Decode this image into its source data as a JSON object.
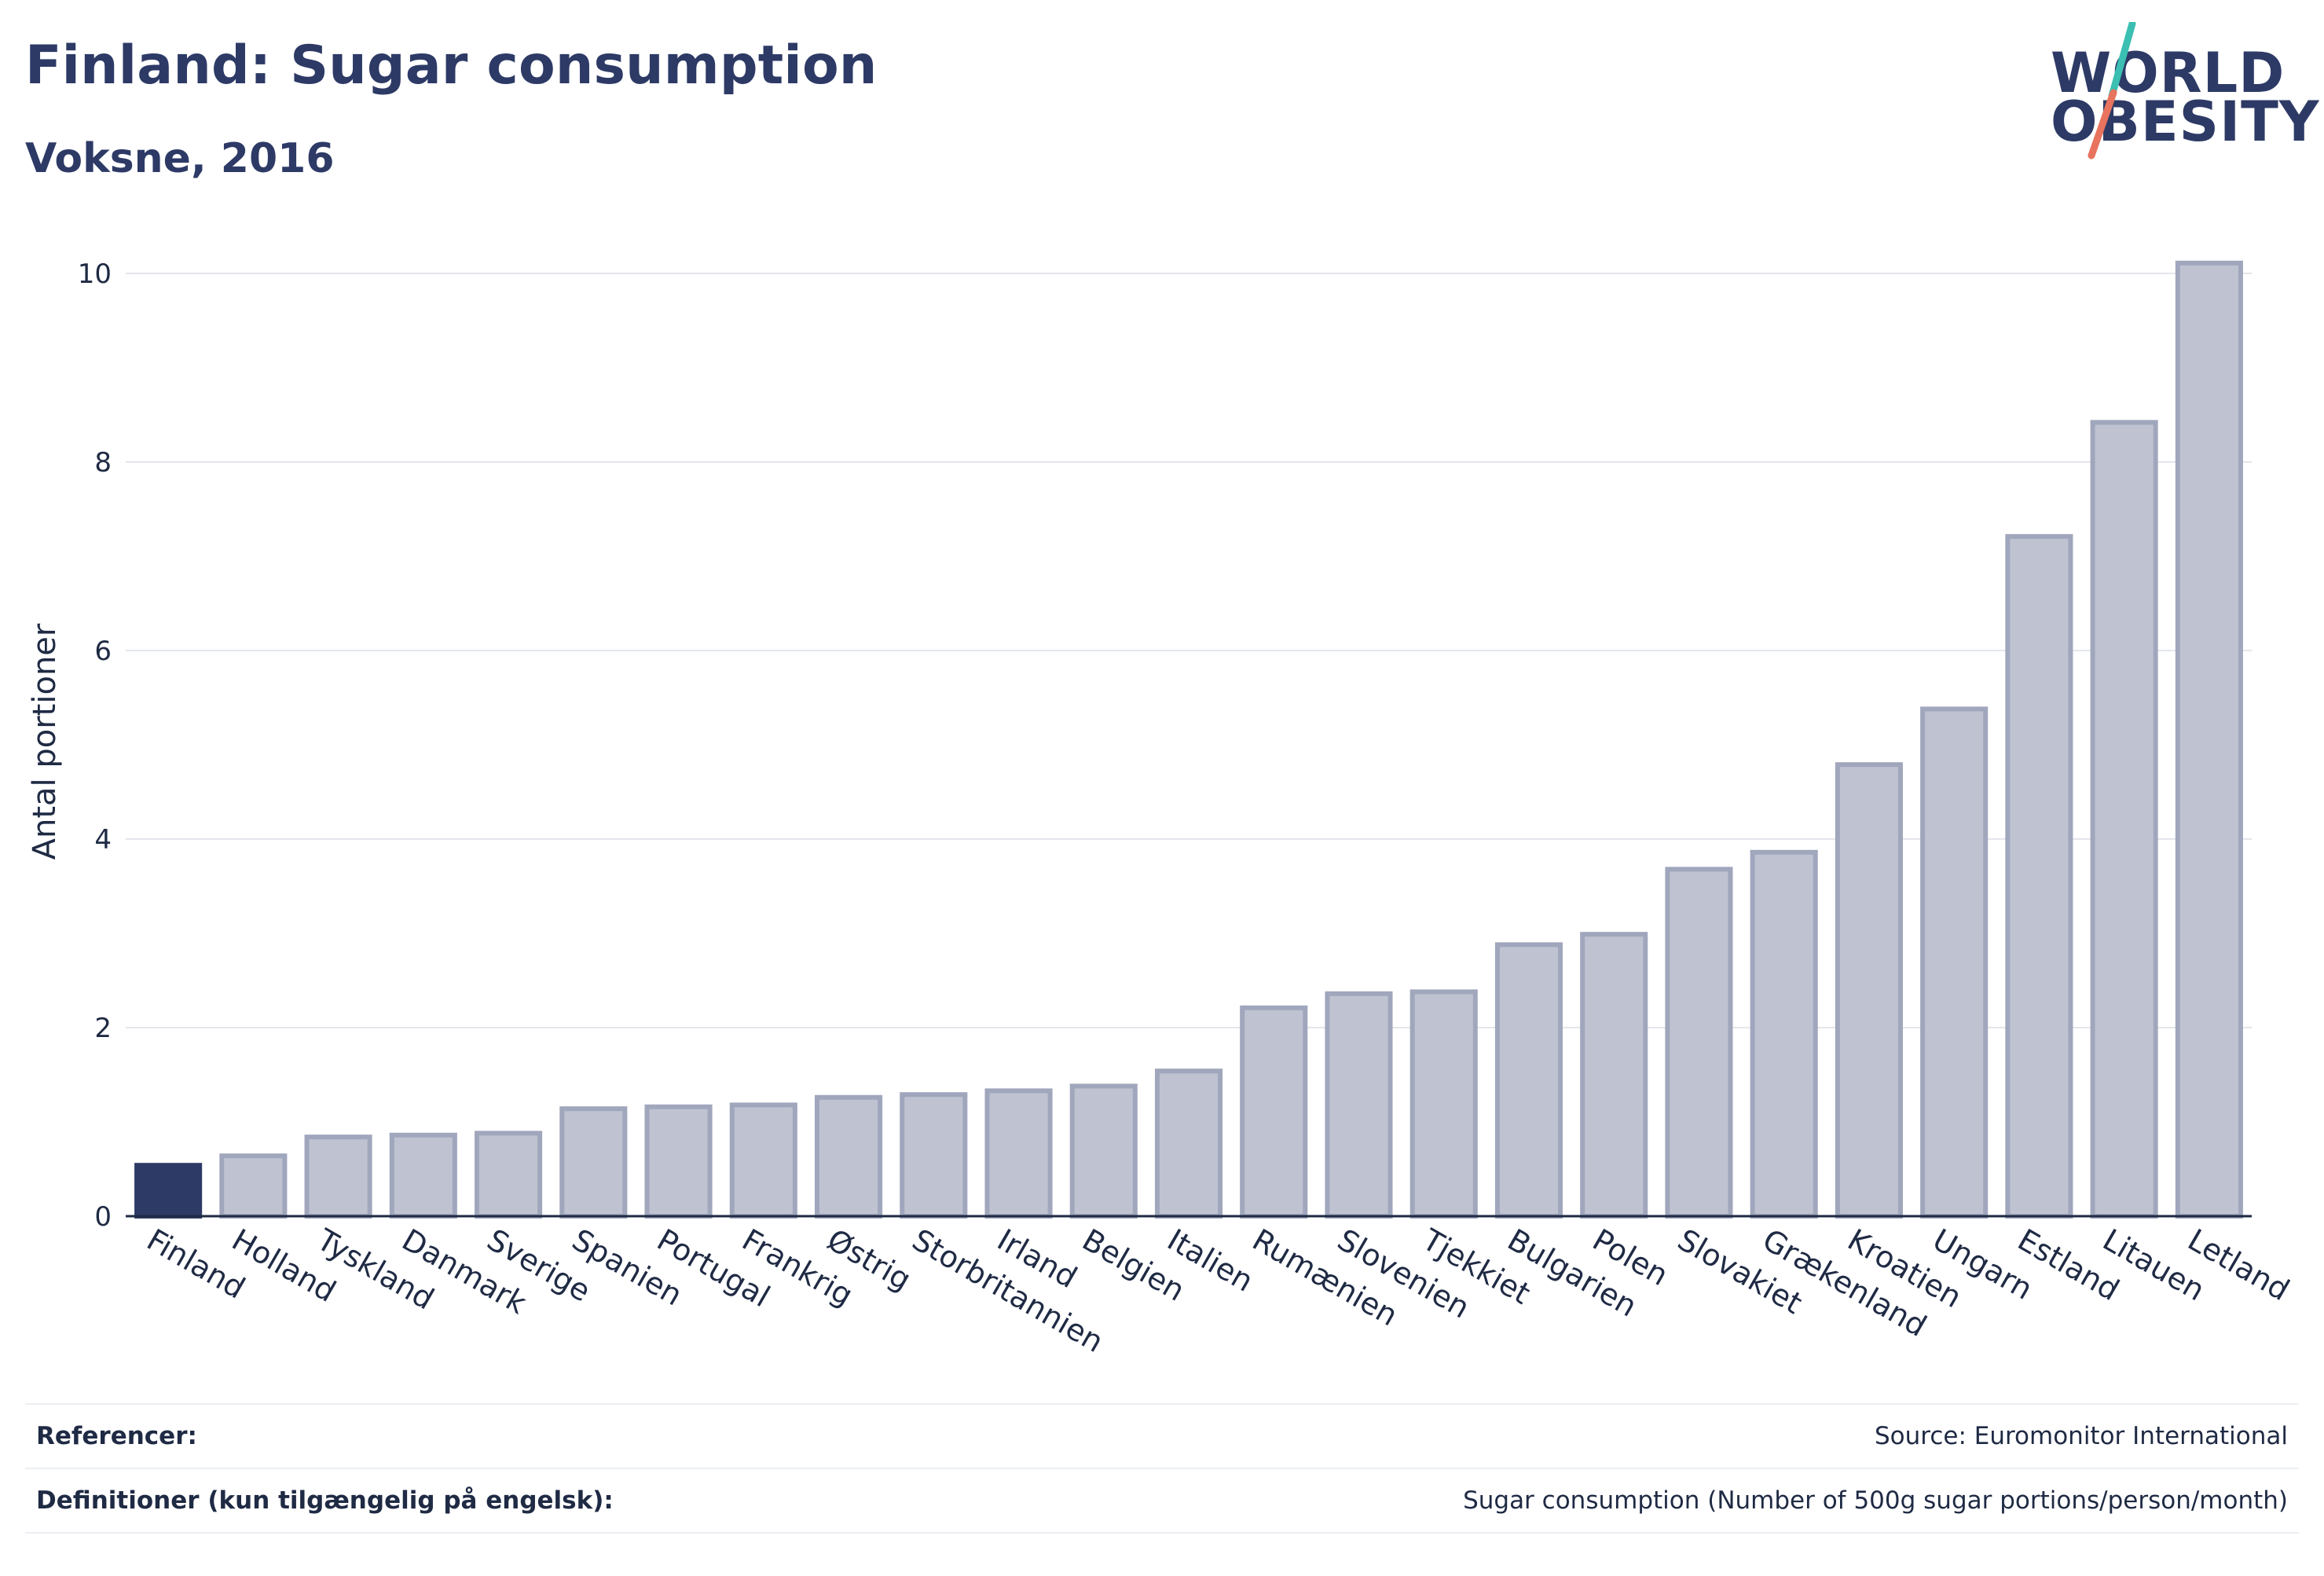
{
  "header": {
    "title": "Finland: Sugar consumption",
    "subtitle": "Voksne, 2016",
    "logo": {
      "line1": "WORLD",
      "line2": "OBESITY",
      "icon": "slash-logo-mark",
      "colors": {
        "text": "#2d3a66",
        "slash_top": "#3bbfb2",
        "slash_bottom": "#e8735e"
      }
    }
  },
  "chart_data": {
    "type": "bar",
    "title": "",
    "xlabel": "",
    "ylabel": "Antal portioner",
    "ylim": [
      0,
      10.4
    ],
    "yticks": [
      0,
      2,
      4,
      6,
      8,
      10
    ],
    "grid": true,
    "highlight": "Finland",
    "colors": {
      "highlight": "#2d3a66",
      "bar_fill": "#bfc3d1",
      "bar_stroke": "#a0a6bc"
    },
    "categories": [
      "Finland",
      "Holland",
      "Tyskland",
      "Danmark",
      "Sverige",
      "Spanien",
      "Portugal",
      "Frankrig",
      "Østrig",
      "Storbritannien",
      "Irland",
      "Belgien",
      "Italien",
      "Rumænien",
      "Slovenien",
      "Tjekkiet",
      "Bulgarien",
      "Polen",
      "Slovakiet",
      "Grækenland",
      "Kroatien",
      "Ungarn",
      "Estland",
      "Litauen",
      "Letland"
    ],
    "values": [
      0.54,
      0.64,
      0.84,
      0.86,
      0.88,
      1.14,
      1.16,
      1.18,
      1.26,
      1.29,
      1.33,
      1.38,
      1.54,
      2.21,
      2.36,
      2.38,
      2.88,
      2.99,
      3.68,
      3.86,
      4.79,
      5.38,
      7.21,
      8.42,
      10.11
    ]
  },
  "footer": {
    "references_label": "Referencer:",
    "references_value": "Source: Euromonitor International",
    "definitions_label": "Definitioner (kun tilgængelig på engelsk):",
    "definitions_value": "Sugar consumption (Number of 500g sugar portions/person/month)"
  }
}
